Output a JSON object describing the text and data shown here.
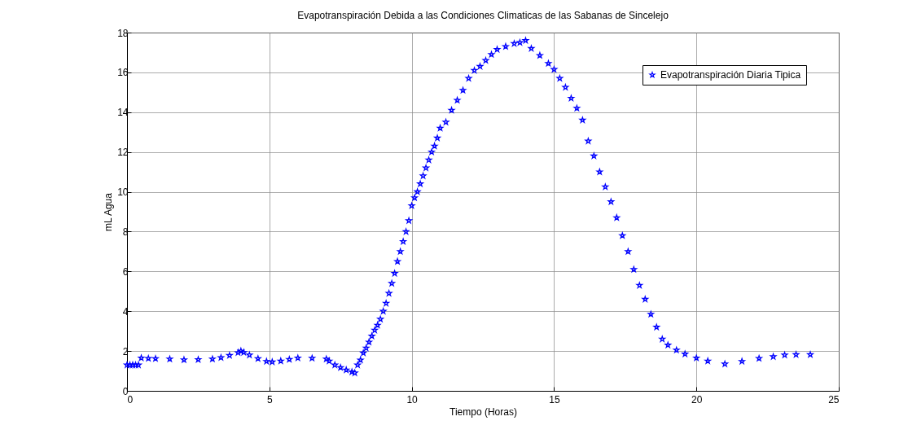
{
  "chart_data": {
    "type": "scatter",
    "title": "Evapotranspiración Debida a las Condiciones Climaticas de las Sabanas de Sincelejo",
    "xlabel": "Tiempo (Horas)",
    "ylabel": "mL Agua",
    "xlim": [
      0,
      25
    ],
    "ylim": [
      0,
      18
    ],
    "xticks": [
      0,
      5,
      10,
      15,
      20,
      25
    ],
    "yticks": [
      0,
      2,
      4,
      6,
      8,
      10,
      12,
      14,
      16,
      18
    ],
    "grid": true,
    "legend": "top right",
    "marker": "star",
    "series": [
      {
        "name": "Evapotranspiración Diaria Tipica",
        "color": "#0000ff",
        "x": [
          0,
          0.1,
          0.2,
          0.3,
          0.4,
          0.5,
          0.75,
          1,
          1.5,
          2,
          2.5,
          3,
          3.3,
          3.6,
          3.9,
          4,
          4.1,
          4.3,
          4.6,
          4.9,
          5.1,
          5.4,
          5.7,
          6,
          6.5,
          7,
          7.1,
          7.3,
          7.5,
          7.7,
          7.9,
          8,
          8.1,
          8.2,
          8.3,
          8.4,
          8.5,
          8.6,
          8.7,
          8.8,
          8.9,
          9,
          9.1,
          9.2,
          9.3,
          9.4,
          9.5,
          9.6,
          9.7,
          9.8,
          9.9,
          10,
          10.1,
          10.2,
          10.3,
          10.4,
          10.5,
          10.6,
          10.7,
          10.8,
          10.9,
          11,
          11.2,
          11.4,
          11.6,
          11.8,
          12,
          12.2,
          12.4,
          12.6,
          12.8,
          13,
          13.3,
          13.6,
          13.8,
          14,
          14.2,
          14.5,
          14.8,
          15,
          15.2,
          15.4,
          15.6,
          15.8,
          16,
          16.2,
          16.4,
          16.6,
          16.8,
          17,
          17.2,
          17.4,
          17.6,
          17.8,
          18,
          18.2,
          18.4,
          18.6,
          18.8,
          19,
          19.3,
          19.6,
          20,
          20.4,
          21,
          21.6,
          22.2,
          22.7,
          23.1,
          23.5,
          24
        ],
        "values": [
          1.3,
          1.3,
          1.3,
          1.3,
          1.3,
          1.65,
          1.63,
          1.62,
          1.6,
          1.56,
          1.57,
          1.6,
          1.67,
          1.78,
          1.92,
          2.0,
          1.93,
          1.8,
          1.62,
          1.48,
          1.45,
          1.5,
          1.58,
          1.65,
          1.64,
          1.6,
          1.5,
          1.3,
          1.17,
          1.05,
          0.95,
          0.9,
          1.3,
          1.55,
          1.9,
          2.15,
          2.45,
          2.75,
          3.05,
          3.3,
          3.6,
          4.0,
          4.4,
          4.9,
          5.4,
          5.9,
          6.5,
          7.0,
          7.5,
          8.0,
          8.55,
          9.3,
          9.7,
          10.0,
          10.4,
          10.8,
          11.2,
          11.6,
          12.0,
          12.3,
          12.7,
          13.2,
          13.5,
          14.1,
          14.6,
          15.1,
          15.7,
          16.1,
          16.3,
          16.6,
          16.9,
          17.15,
          17.3,
          17.45,
          17.5,
          17.6,
          17.2,
          16.85,
          16.45,
          16.15,
          15.7,
          15.25,
          14.7,
          14.2,
          13.6,
          12.55,
          11.8,
          11.0,
          10.25,
          9.5,
          8.7,
          7.8,
          7.0,
          6.1,
          5.3,
          4.6,
          3.85,
          3.2,
          2.6,
          2.3,
          2.05,
          1.85,
          1.65,
          1.5,
          1.35,
          1.48,
          1.63,
          1.72,
          1.8,
          1.82,
          1.82
        ]
      }
    ]
  }
}
